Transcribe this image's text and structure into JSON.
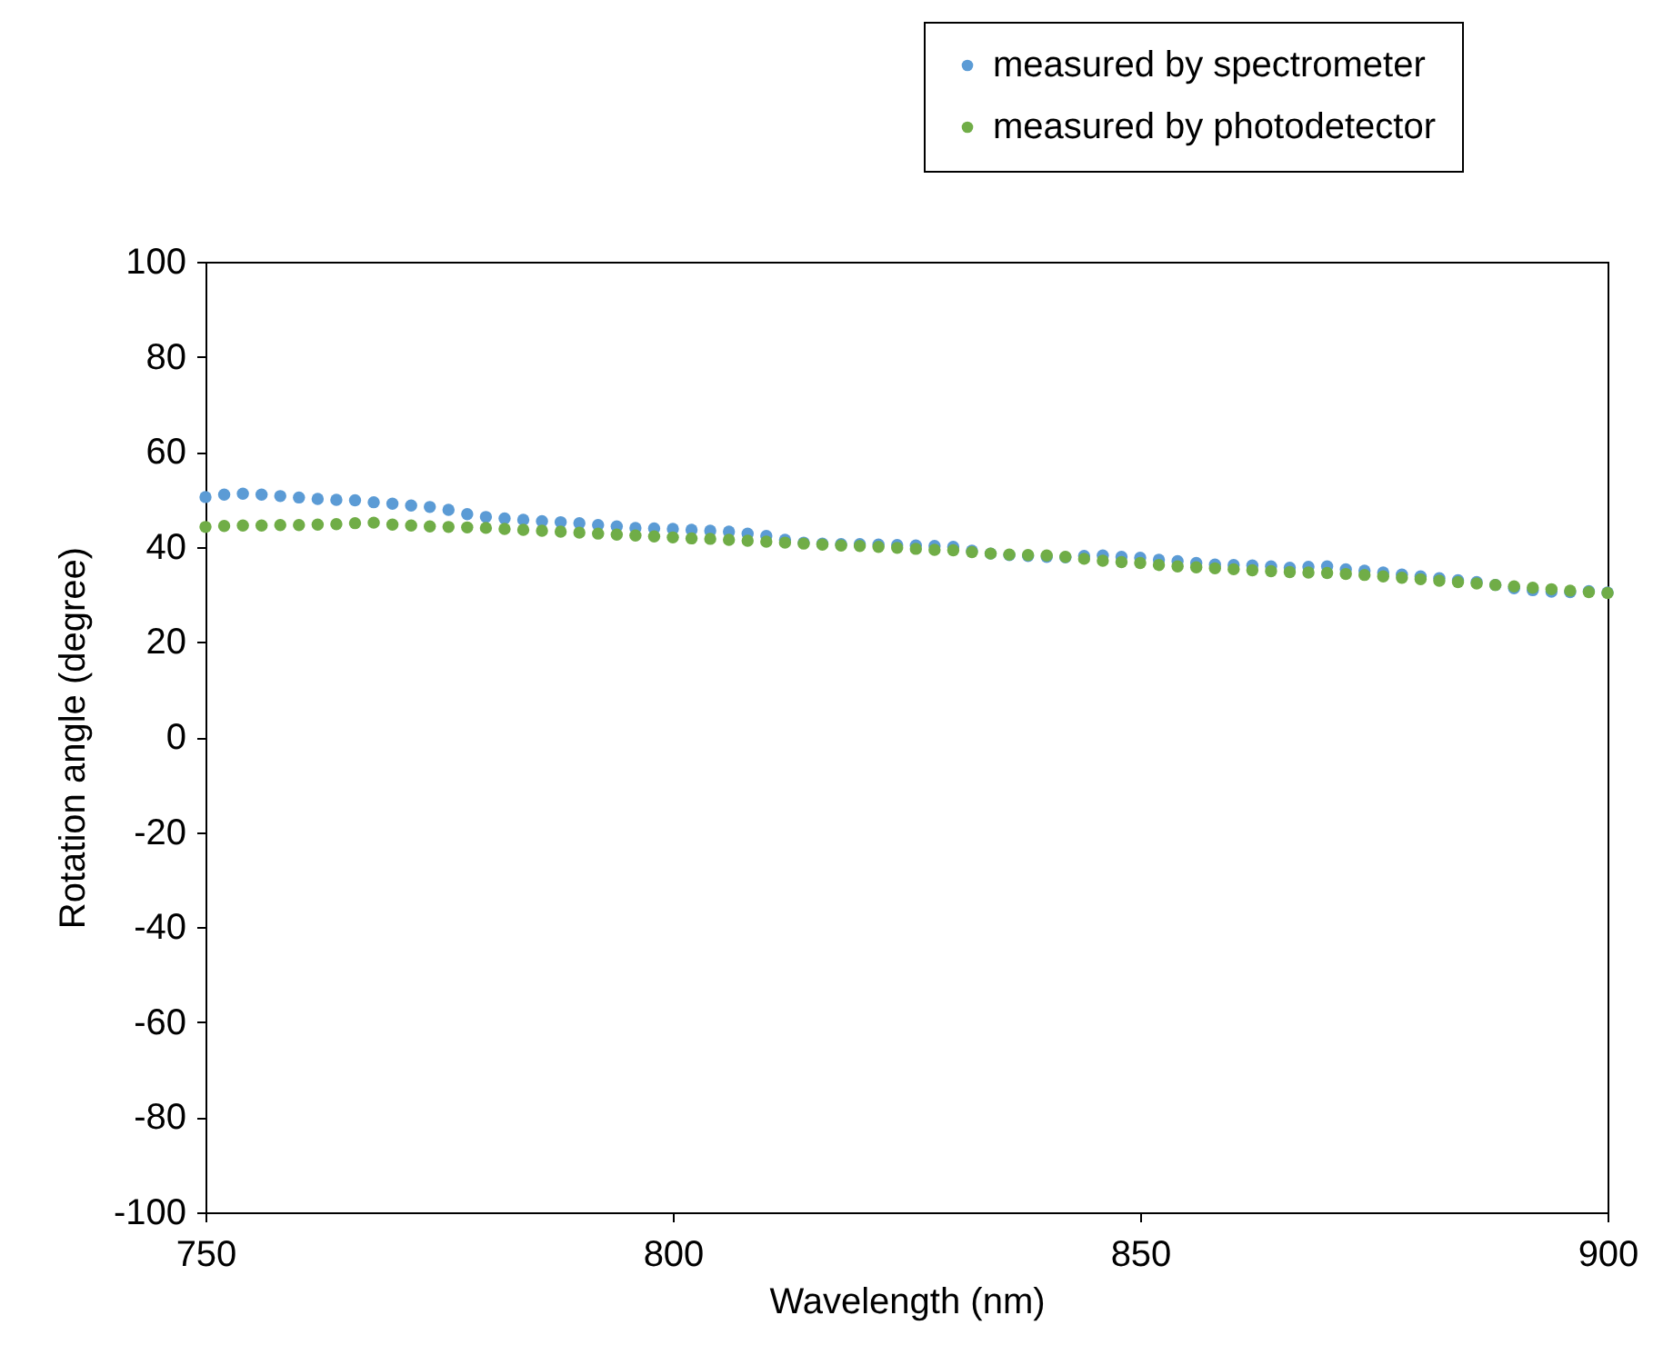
{
  "chart_data": {
    "type": "scatter",
    "xlabel": "Wavelength (nm)",
    "ylabel": "Rotation angle (degree)",
    "xlim": [
      750,
      900
    ],
    "xticks": [
      750,
      800,
      850,
      900
    ],
    "ylim": [
      -100,
      100
    ],
    "yticks": [
      -100,
      -80,
      -60,
      -40,
      -20,
      0,
      20,
      40,
      60,
      80,
      100
    ],
    "grid": false,
    "legend": "top right",
    "marker": "circle",
    "x": [
      750,
      752,
      754,
      756,
      758,
      760,
      762,
      764,
      766,
      768,
      770,
      772,
      774,
      776,
      778,
      780,
      782,
      784,
      786,
      788,
      790,
      792,
      794,
      796,
      798,
      800,
      802,
      804,
      806,
      808,
      810,
      812,
      814,
      816,
      818,
      820,
      822,
      824,
      826,
      828,
      830,
      832,
      834,
      836,
      838,
      840,
      842,
      844,
      846,
      848,
      850,
      852,
      854,
      856,
      858,
      860,
      862,
      864,
      866,
      868,
      870,
      872,
      874,
      876,
      878,
      880,
      882,
      884,
      886,
      888,
      890,
      892,
      894,
      896,
      898,
      900
    ],
    "series": [
      {
        "name": "measured by spectrometer",
        "color": "#5b9bd5",
        "values": [
          50.5,
          51,
          51.2,
          51,
          50.7,
          50.4,
          50.1,
          49.9,
          49.8,
          49.4,
          49.1,
          48.7,
          48.4,
          47.8,
          46.9,
          46.3,
          46,
          45.7,
          45.4,
          45.2,
          45,
          44.6,
          44.3,
          44,
          43.9,
          43.8,
          43.6,
          43.4,
          43.2,
          42.8,
          42.3,
          41.5,
          40.9,
          40.7,
          40.6,
          40.6,
          40.5,
          40.4,
          40.3,
          40.2,
          40,
          39.2,
          38.6,
          38.3,
          38.1,
          37.9,
          37.8,
          38.1,
          38.2,
          37.9,
          37.7,
          37.3,
          37,
          36.6,
          36.3,
          36.2,
          36.1,
          35.9,
          35.6,
          35.8,
          35.9,
          35.3,
          35,
          34.6,
          34.2,
          33.8,
          33.4,
          33,
          32.6,
          32,
          31.3,
          30.9,
          30.6,
          30.5,
          30.7,
          30.4
        ]
      },
      {
        "name": "measured by photodetector",
        "color": "#70ad47",
        "values": [
          44.2,
          44.4,
          44.5,
          44.5,
          44.6,
          44.6,
          44.7,
          44.8,
          45,
          45.1,
          44.7,
          44.5,
          44.3,
          44.2,
          44.1,
          44,
          43.8,
          43.6,
          43.4,
          43.2,
          43,
          42.8,
          42.6,
          42.4,
          42.2,
          42,
          41.8,
          41.7,
          41.5,
          41.3,
          41.1,
          40.9,
          40.7,
          40.5,
          40.3,
          40.2,
          40,
          39.8,
          39.6,
          39.4,
          39.3,
          38.9,
          38.6,
          38.4,
          38.3,
          38.2,
          37.9,
          37.5,
          37.1,
          36.8,
          36.6,
          36.2,
          35.9,
          35.7,
          35.5,
          35.3,
          35.1,
          34.9,
          34.7,
          34.6,
          34.5,
          34.3,
          34.1,
          33.8,
          33.5,
          33.2,
          32.9,
          32.6,
          32.3,
          32,
          31.7,
          31.4,
          31.1,
          30.8,
          30.5,
          30.3
        ]
      }
    ]
  }
}
